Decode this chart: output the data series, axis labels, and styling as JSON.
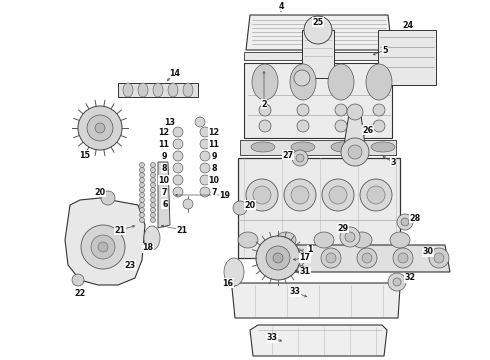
{
  "bg_color": "#ffffff",
  "fig_width": 4.9,
  "fig_height": 3.6,
  "dpi": 100,
  "label_fontsize": 5.8,
  "lc": "#333333",
  "fc_light": "#f2f2f2",
  "fc_mid": "#e0e0e0",
  "fc_dark": "#cccccc",
  "labels": [
    [
      "4",
      245,
      8
    ],
    [
      "5",
      382,
      52
    ],
    [
      "2",
      270,
      110
    ],
    [
      "3",
      390,
      167
    ],
    [
      "1",
      310,
      232
    ],
    [
      "25",
      313,
      38
    ],
    [
      "24",
      390,
      38
    ],
    [
      "27",
      298,
      155
    ],
    [
      "26",
      360,
      138
    ],
    [
      "14",
      155,
      80
    ],
    [
      "15",
      95,
      148
    ],
    [
      "13",
      208,
      120
    ],
    [
      "12",
      177,
      132
    ],
    [
      "12",
      208,
      132
    ],
    [
      "11",
      177,
      144
    ],
    [
      "9",
      177,
      156
    ],
    [
      "8",
      177,
      168
    ],
    [
      "10",
      208,
      168
    ],
    [
      "7",
      208,
      180
    ],
    [
      "6",
      177,
      192
    ],
    [
      "20",
      111,
      198
    ],
    [
      "21",
      120,
      228
    ],
    [
      "21",
      186,
      228
    ],
    [
      "19",
      228,
      198
    ],
    [
      "18",
      158,
      240
    ],
    [
      "20",
      248,
      210
    ],
    [
      "16",
      234,
      278
    ],
    [
      "22",
      92,
      278
    ],
    [
      "23",
      137,
      268
    ],
    [
      "28",
      403,
      218
    ],
    [
      "29",
      346,
      228
    ],
    [
      "30",
      415,
      248
    ],
    [
      "31",
      310,
      258
    ],
    [
      "17",
      310,
      258
    ],
    [
      "33",
      298,
      295
    ],
    [
      "32",
      393,
      285
    ],
    [
      "33",
      285,
      340
    ]
  ]
}
